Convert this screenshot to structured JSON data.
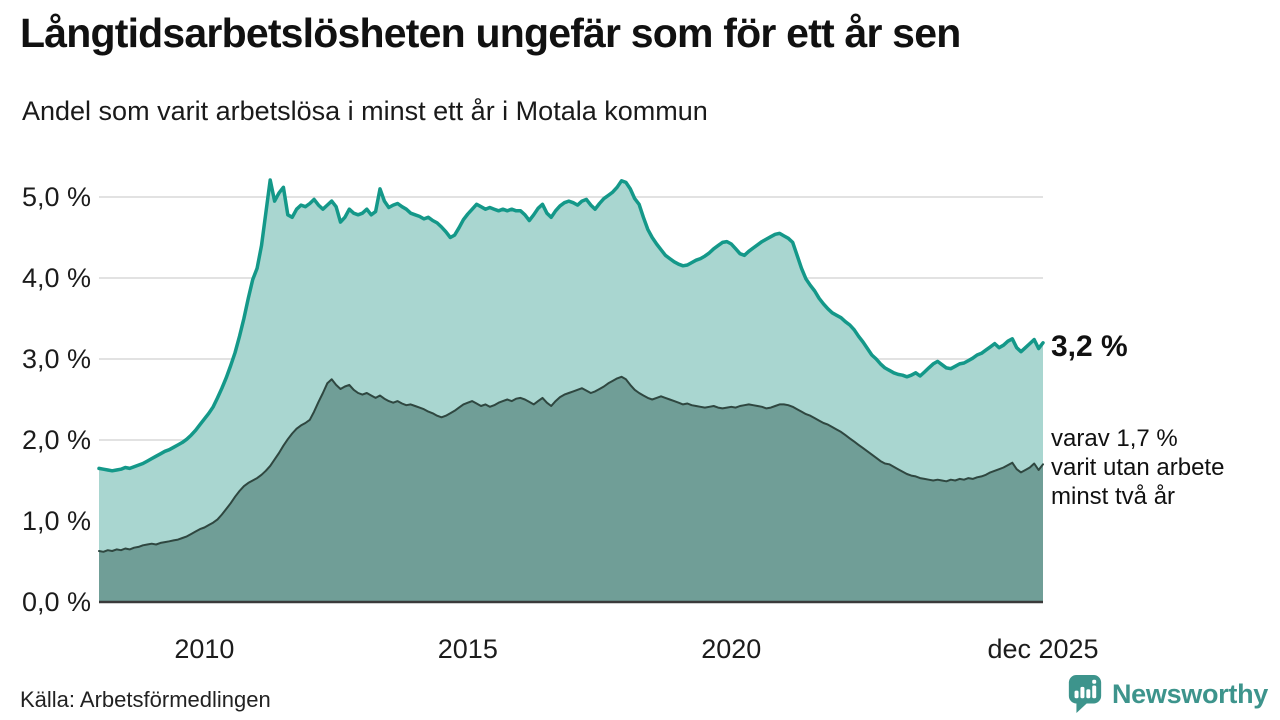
{
  "header": {
    "title": "Långtidsarbetslösheten ungefär som för ett år sen",
    "subtitle": "Andel som varit arbetslösa i minst ett år i Motala kommun"
  },
  "chart_data": {
    "type": "area",
    "title": "Långtidsarbetslösheten ungefär som för ett år sen",
    "subtitle": "Andel som varit arbetslösa i minst ett år i Motala kommun",
    "x_unit": "month",
    "x_start": "2008-01",
    "x_end": "2025-12",
    "ylim": [
      0,
      5.35
    ],
    "grid": "horizontal",
    "colors": {
      "line_total": "#149889",
      "fill_total": "#a9d6d0",
      "line_two_years": "#2f4740",
      "fill_two_years": "#709e97",
      "gridline": "#d9d9d9",
      "baseline": "#3a3a3a",
      "tick_text": "#1c1c1c"
    },
    "y_ticks": [
      {
        "label": "0,0 %",
        "value": 0
      },
      {
        "label": "1,0 %",
        "value": 1
      },
      {
        "label": "2,0 %",
        "value": 2
      },
      {
        "label": "3,0 %",
        "value": 3
      },
      {
        "label": "4,0 %",
        "value": 4
      },
      {
        "label": "5,0 %",
        "value": 5
      }
    ],
    "x_ticks": [
      {
        "label": "2010",
        "month_index": 24
      },
      {
        "label": "2015",
        "month_index": 84
      },
      {
        "label": "2020",
        "month_index": 144
      },
      {
        "label": "dec 2025",
        "month_index": 215
      }
    ],
    "series": [
      {
        "name": "Andel arbetslösa minst ett år",
        "values": [
          1.65,
          1.64,
          1.63,
          1.62,
          1.63,
          1.64,
          1.66,
          1.65,
          1.67,
          1.69,
          1.71,
          1.74,
          1.77,
          1.8,
          1.83,
          1.86,
          1.88,
          1.91,
          1.94,
          1.97,
          2.01,
          2.06,
          2.12,
          2.19,
          2.26,
          2.33,
          2.41,
          2.52,
          2.64,
          2.77,
          2.92,
          3.08,
          3.28,
          3.5,
          3.75,
          3.98,
          4.12,
          4.4,
          4.8,
          5.21,
          4.95,
          5.05,
          5.12,
          4.78,
          4.75,
          4.85,
          4.9,
          4.88,
          4.92,
          4.97,
          4.9,
          4.85,
          4.9,
          4.95,
          4.88,
          4.69,
          4.75,
          4.85,
          4.8,
          4.78,
          4.8,
          4.85,
          4.78,
          4.82,
          5.1,
          4.95,
          4.87,
          4.9,
          4.92,
          4.88,
          4.85,
          4.8,
          4.78,
          4.76,
          4.73,
          4.75,
          4.71,
          4.68,
          4.63,
          4.57,
          4.5,
          4.53,
          4.62,
          4.72,
          4.79,
          4.85,
          4.91,
          4.88,
          4.85,
          4.87,
          4.85,
          4.83,
          4.85,
          4.83,
          4.85,
          4.83,
          4.83,
          4.78,
          4.71,
          4.78,
          4.86,
          4.91,
          4.8,
          4.75,
          4.83,
          4.89,
          4.93,
          4.95,
          4.93,
          4.9,
          4.95,
          4.97,
          4.9,
          4.85,
          4.92,
          4.98,
          5.02,
          5.06,
          5.12,
          5.2,
          5.18,
          5.1,
          4.98,
          4.91,
          4.75,
          4.6,
          4.5,
          4.42,
          4.35,
          4.28,
          4.24,
          4.2,
          4.17,
          4.15,
          4.16,
          4.19,
          4.22,
          4.24,
          4.27,
          4.31,
          4.36,
          4.4,
          4.44,
          4.45,
          4.42,
          4.36,
          4.3,
          4.28,
          4.33,
          4.37,
          4.41,
          4.45,
          4.48,
          4.51,
          4.54,
          4.55,
          4.52,
          4.49,
          4.44,
          4.28,
          4.12,
          3.99,
          3.91,
          3.84,
          3.75,
          3.68,
          3.62,
          3.57,
          3.54,
          3.51,
          3.46,
          3.42,
          3.36,
          3.28,
          3.21,
          3.13,
          3.05,
          3.0,
          2.94,
          2.89,
          2.86,
          2.83,
          2.81,
          2.8,
          2.78,
          2.8,
          2.83,
          2.79,
          2.84,
          2.89,
          2.94,
          2.97,
          2.93,
          2.89,
          2.88,
          2.91,
          2.94,
          2.95,
          2.98,
          3.01,
          3.05,
          3.07,
          3.11,
          3.15,
          3.19,
          3.14,
          3.17,
          3.22,
          3.25,
          3.14,
          3.09,
          3.14,
          3.19,
          3.24,
          3.13,
          3.2
        ]
      },
      {
        "name": "varav utan arbete minst två år",
        "values": [
          0.63,
          0.62,
          0.64,
          0.63,
          0.65,
          0.64,
          0.66,
          0.65,
          0.67,
          0.68,
          0.7,
          0.71,
          0.72,
          0.71,
          0.73,
          0.74,
          0.75,
          0.76,
          0.77,
          0.79,
          0.81,
          0.84,
          0.87,
          0.9,
          0.92,
          0.95,
          0.98,
          1.02,
          1.08,
          1.15,
          1.22,
          1.3,
          1.37,
          1.43,
          1.47,
          1.5,
          1.53,
          1.57,
          1.62,
          1.68,
          1.76,
          1.84,
          1.93,
          2.01,
          2.08,
          2.14,
          2.18,
          2.21,
          2.25,
          2.35,
          2.47,
          2.58,
          2.7,
          2.75,
          2.68,
          2.63,
          2.66,
          2.68,
          2.62,
          2.58,
          2.56,
          2.58,
          2.55,
          2.52,
          2.55,
          2.51,
          2.48,
          2.46,
          2.48,
          2.45,
          2.43,
          2.44,
          2.42,
          2.4,
          2.38,
          2.35,
          2.33,
          2.3,
          2.28,
          2.3,
          2.33,
          2.36,
          2.4,
          2.44,
          2.46,
          2.48,
          2.45,
          2.42,
          2.44,
          2.41,
          2.43,
          2.46,
          2.48,
          2.5,
          2.48,
          2.51,
          2.52,
          2.5,
          2.47,
          2.44,
          2.48,
          2.52,
          2.46,
          2.42,
          2.48,
          2.53,
          2.56,
          2.58,
          2.6,
          2.62,
          2.64,
          2.61,
          2.58,
          2.6,
          2.63,
          2.66,
          2.7,
          2.73,
          2.76,
          2.78,
          2.75,
          2.68,
          2.62,
          2.58,
          2.55,
          2.52,
          2.5,
          2.52,
          2.54,
          2.52,
          2.5,
          2.48,
          2.46,
          2.44,
          2.45,
          2.43,
          2.42,
          2.41,
          2.4,
          2.41,
          2.42,
          2.4,
          2.39,
          2.4,
          2.41,
          2.4,
          2.42,
          2.43,
          2.44,
          2.43,
          2.42,
          2.41,
          2.39,
          2.4,
          2.42,
          2.44,
          2.44,
          2.43,
          2.41,
          2.38,
          2.35,
          2.32,
          2.3,
          2.27,
          2.24,
          2.21,
          2.19,
          2.16,
          2.13,
          2.1,
          2.06,
          2.02,
          1.98,
          1.94,
          1.9,
          1.86,
          1.82,
          1.78,
          1.74,
          1.71,
          1.7,
          1.67,
          1.64,
          1.61,
          1.58,
          1.56,
          1.55,
          1.53,
          1.52,
          1.51,
          1.5,
          1.51,
          1.5,
          1.49,
          1.51,
          1.5,
          1.52,
          1.51,
          1.53,
          1.52,
          1.54,
          1.55,
          1.57,
          1.6,
          1.62,
          1.64,
          1.66,
          1.69,
          1.72,
          1.64,
          1.6,
          1.63,
          1.66,
          1.71,
          1.63,
          1.7
        ]
      }
    ],
    "annotations": {
      "latest_total": "3,2 %",
      "latest_sub": "varav 1,7 %\nvarit utan arbete\nminst två år"
    }
  },
  "footer": {
    "source": "Källa: Arbetsförmedlingen",
    "brand": "Newsworthy",
    "brand_icon": "newsworthy-bubble-chart-icon",
    "brand_color": "#3d948c"
  }
}
